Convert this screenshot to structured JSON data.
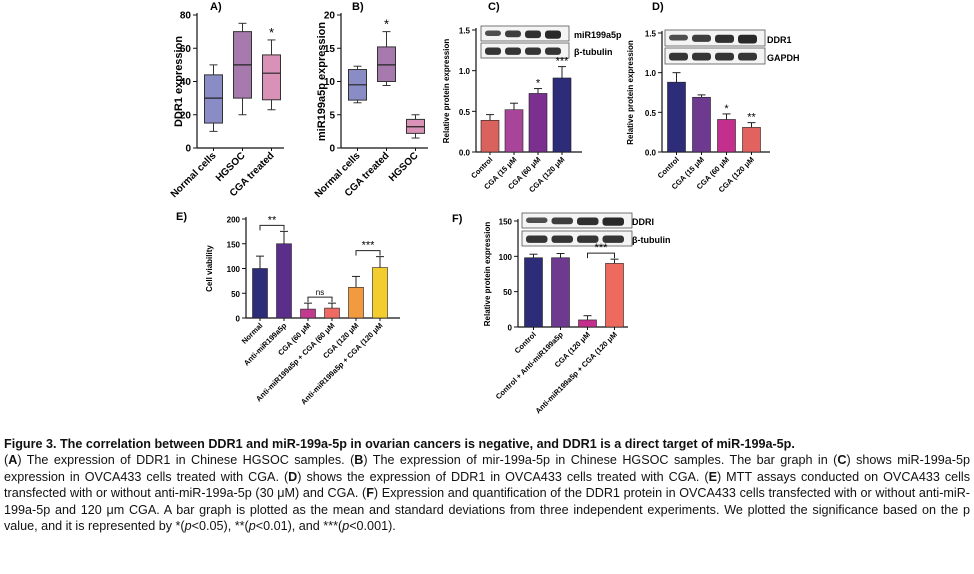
{
  "chart_data": [
    {
      "id": "A",
      "panel_label": "A)",
      "type": "box",
      "ylabel": "DDR1 expression",
      "ylim": [
        0,
        80
      ],
      "yticks": [
        "0",
        "20",
        "40",
        "60",
        "80"
      ],
      "categories": [
        "Normal cells",
        "HGSOC",
        "CGA treated"
      ],
      "boxes": [
        {
          "min": 10,
          "q1": 15,
          "median": 30,
          "q3": 44,
          "max": 50,
          "color": "#8a8cc6"
        },
        {
          "min": 20,
          "q1": 30,
          "median": 50,
          "q3": 70,
          "max": 75,
          "color": "#a77aae"
        },
        {
          "min": 23,
          "q1": 29,
          "median": 45,
          "q3": 56,
          "max": 65,
          "color": "#d991b8"
        }
      ],
      "annotations": [
        "",
        "",
        "*"
      ]
    },
    {
      "id": "B",
      "panel_label": "B)",
      "type": "box",
      "ylabel": "miR199a5p expression",
      "ylim": [
        0,
        20
      ],
      "yticks": [
        "0",
        "5",
        "10",
        "15",
        "20"
      ],
      "categories": [
        "Normal cells",
        "CGA treated",
        "HGSOC"
      ],
      "boxes": [
        {
          "min": 6.8,
          "q1": 7.2,
          "median": 9.5,
          "q3": 11.8,
          "max": 12.3,
          "color": "#8a8cc6"
        },
        {
          "min": 9.4,
          "q1": 10,
          "median": 12.5,
          "q3": 15.2,
          "max": 17.5,
          "color": "#a77aae"
        },
        {
          "min": 1.5,
          "q1": 2.2,
          "median": 3.2,
          "q3": 4.3,
          "max": 5,
          "color": "#d991b8"
        }
      ],
      "annotations": [
        "",
        "*",
        ""
      ]
    },
    {
      "id": "C",
      "panel_label": "C)",
      "type": "bar",
      "ylabel": "Relative protein expression",
      "ylim": [
        0,
        1.5
      ],
      "yticks": [
        "0.0",
        "0.5",
        "1.0",
        "1.5"
      ],
      "categories": [
        "Control",
        "CGA (15 μM",
        "CGA (60 μM",
        "CGA (120 μM"
      ],
      "values": [
        0.39,
        0.52,
        0.72,
        0.91
      ],
      "errors": [
        0.07,
        0.08,
        0.06,
        0.14
      ],
      "colors": [
        "#d9625c",
        "#a8449a",
        "#7b2f8e",
        "#2c2c78"
      ],
      "annotations": [
        "",
        "",
        "*",
        "***"
      ],
      "blot_labels": [
        "miR199a5p",
        "β-tubulin"
      ]
    },
    {
      "id": "D",
      "panel_label": "D)",
      "type": "bar",
      "ylabel": "Relative protein expression",
      "ylim": [
        0,
        1.5
      ],
      "yticks": [
        "0.0",
        "0.5",
        "1.0",
        "1.5"
      ],
      "categories": [
        "Control",
        "CGA (15 μM",
        "CGA (60 μM",
        "CGA (120 μM"
      ],
      "values": [
        0.88,
        0.69,
        0.41,
        0.31
      ],
      "errors": [
        0.12,
        0.03,
        0.07,
        0.06
      ],
      "colors": [
        "#2c2c78",
        "#6e3a8f",
        "#c22f8c",
        "#e1625e"
      ],
      "annotations": [
        "",
        "",
        "*",
        "**"
      ],
      "blot_labels": [
        "DDR1",
        "GAPDH"
      ]
    },
    {
      "id": "E",
      "panel_label": "E)",
      "type": "bar",
      "ylabel": "Cell viability",
      "ylim": [
        0,
        200
      ],
      "yticks": [
        "0",
        "50",
        "100",
        "150",
        "200"
      ],
      "categories": [
        "Normal",
        "Anti-miR199a5p",
        "CGA (60 μM",
        "Anti-miR199a5p + CGA (60 μM",
        "CGA (120 μM",
        "Anti-miR199a5p + CGA (120 μM"
      ],
      "values": [
        100,
        150,
        18,
        20,
        62,
        102
      ],
      "errors": [
        25,
        25,
        12,
        10,
        22,
        22
      ],
      "colors": [
        "#2c2c78",
        "#5a2e8a",
        "#c23a8e",
        "#ee6a62",
        "#f29a40",
        "#f3cd2e"
      ],
      "brackets": [
        {
          "from": 0,
          "to": 1,
          "label": "**"
        },
        {
          "from": 2,
          "to": 3,
          "label": "ns"
        },
        {
          "from": 4,
          "to": 5,
          "label": "***"
        }
      ]
    },
    {
      "id": "F",
      "panel_label": "F)",
      "type": "bar",
      "ylabel": "Relative protein expression",
      "ylim": [
        0,
        150
      ],
      "yticks": [
        "0",
        "50",
        "100",
        "150"
      ],
      "categories": [
        "Control",
        "Control + Anti-miR199a5p",
        "CGA (120 μM",
        "Anti-miR199a5p + CGA (120 μM"
      ],
      "values": [
        98,
        98,
        10,
        90
      ],
      "errors": [
        5,
        6,
        6,
        6
      ],
      "colors": [
        "#2c2c78",
        "#6e3a8f",
        "#c22f8c",
        "#ef6a5e"
      ],
      "brackets": [
        {
          "from": 2,
          "to": 3,
          "label": "***"
        }
      ],
      "blot_labels": [
        "DDRI",
        "β-tubulin"
      ]
    }
  ],
  "caption": {
    "title": "Figure 3. The correlation between DDR1 and miR-199a-5p in ovarian cancers is negative, and DDR1 is a direct target of miR-199a-5p.",
    "a_label": "A",
    "a_text": " The expression of DDR1 in Chinese HGSOC samples. (",
    "b_label": "B",
    "b_text": " The expression of mir-199a-5p in Chinese HGSOC samples. The bar graph in (",
    "c_label": "C",
    "c_text": " shows miR-199a-5p expression in OVCA433 cells treated with CGA. (",
    "d_label": "D",
    "d_text": " shows the expression of DDR1 in OVCA433 cells treated with CGA. (",
    "e_label": "E",
    "e_text": " MTT assays conducted on OVCA433 cells transfected with or without anti-miR-199a-5p (30 μM) and CGA. (",
    "f_label": "F",
    "f_text": " Expression and quantification of the DDR1 protein in OVCA433 cells transfected with or without anti-miR-199a-5p and 120 μm CGA. A bar graph is plotted as the mean and standard deviations from three independent experiments. We plotted the significance based on the p value, and it is represented by *(",
    "p1": "p",
    "t1": "<0.05), **(",
    "p2": "p",
    "t2": "<0.01), and ***(",
    "p3": "p",
    "t3": "<0.001)."
  }
}
